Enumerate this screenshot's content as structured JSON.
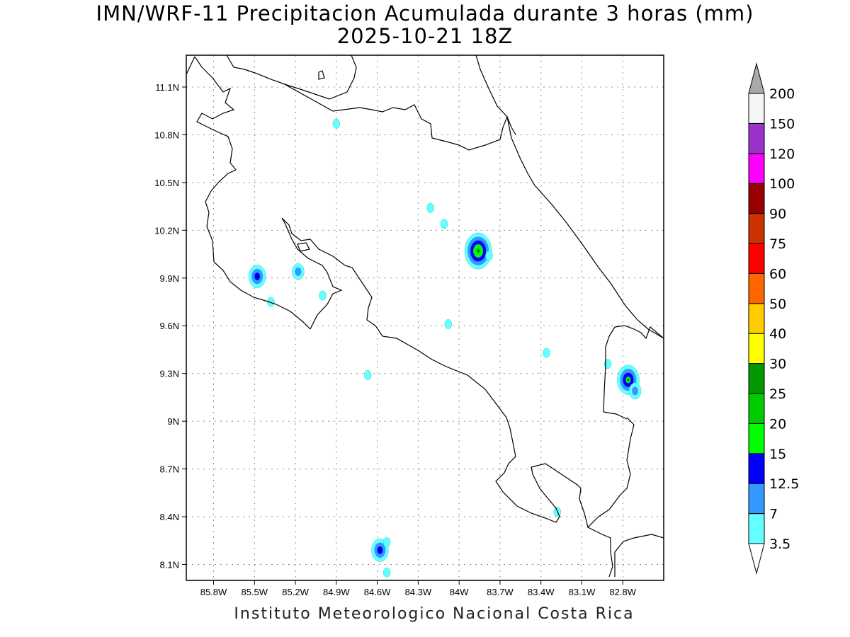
{
  "title": "IMN/WRF-11 Precipitacion Acumulada durante 3 horas (mm)",
  "subtitle": "2025-10-21 18Z",
  "credit": "Instituto Meteorologico Nacional Costa Rica",
  "map": {
    "lon_range": [
      -86.0,
      -82.5
    ],
    "lat_range": [
      8.0,
      11.3
    ],
    "lon_ticks": [
      {
        "value": -85.8,
        "label": "85.8W"
      },
      {
        "value": -85.5,
        "label": "85.5W"
      },
      {
        "value": -85.2,
        "label": "85.2W"
      },
      {
        "value": -84.9,
        "label": "84.9W"
      },
      {
        "value": -84.6,
        "label": "84.6W"
      },
      {
        "value": -84.3,
        "label": "84.3W"
      },
      {
        "value": -84.0,
        "label": "84W"
      },
      {
        "value": -83.7,
        "label": "83.7W"
      },
      {
        "value": -83.4,
        "label": "83.4W"
      },
      {
        "value": -83.1,
        "label": "83.1W"
      },
      {
        "value": -82.8,
        "label": "82.8W"
      }
    ],
    "lat_ticks": [
      {
        "value": 8.1,
        "label": "8.1N"
      },
      {
        "value": 8.4,
        "label": "8.4N"
      },
      {
        "value": 8.7,
        "label": "8.7N"
      },
      {
        "value": 9.0,
        "label": "9N"
      },
      {
        "value": 9.3,
        "label": "9.3N"
      },
      {
        "value": 9.6,
        "label": "9.6N"
      },
      {
        "value": 9.9,
        "label": "9.9N"
      },
      {
        "value": 10.2,
        "label": "10.2N"
      },
      {
        "value": 10.5,
        "label": "10.5N"
      },
      {
        "value": 10.8,
        "label": "10.8N"
      },
      {
        "value": 11.1,
        "label": "11.1N"
      }
    ],
    "gridlines": true
  },
  "colorbar": {
    "levels": [
      "3.5",
      "7",
      "12.5",
      "15",
      "20",
      "25",
      "30",
      "40",
      "50",
      "60",
      "75",
      "90",
      "100",
      "120",
      "150",
      "200"
    ],
    "colors": [
      "#66ffff",
      "#3399ff",
      "#0000ff",
      "#00ff00",
      "#00cc00",
      "#009900",
      "#ffff00",
      "#ffcc00",
      "#ff6600",
      "#ff0000",
      "#cc3300",
      "#990000",
      "#ff00ff",
      "#9933cc",
      "#f5f5f5"
    ],
    "over_color": "#a9a9a9",
    "under_color": "#ffffff"
  },
  "precip_cells": [
    {
      "lon": -85.48,
      "lat": 9.91,
      "max_level": "12.5"
    },
    {
      "lon": -85.38,
      "lat": 9.75,
      "max_level": "3.5"
    },
    {
      "lon": -83.86,
      "lat": 10.07,
      "max_level": "20"
    },
    {
      "lon": -82.76,
      "lat": 9.26,
      "max_level": "15"
    },
    {
      "lon": -84.58,
      "lat": 8.19,
      "max_level": "12.5"
    },
    {
      "lon": -84.53,
      "lat": 8.24,
      "max_level": "3.5"
    },
    {
      "lon": -84.53,
      "lat": 8.05,
      "max_level": "3.5"
    },
    {
      "lon": -84.21,
      "lat": 10.34,
      "max_level": "3.5"
    },
    {
      "lon": -84.11,
      "lat": 10.24,
      "max_level": "3.5"
    },
    {
      "lon": -84.9,
      "lat": 10.87,
      "max_level": "3.5"
    },
    {
      "lon": -85.18,
      "lat": 9.94,
      "max_level": "7"
    },
    {
      "lon": -85.0,
      "lat": 9.79,
      "max_level": "3.5"
    },
    {
      "lon": -84.67,
      "lat": 9.29,
      "max_level": "3.5"
    },
    {
      "lon": -84.08,
      "lat": 9.61,
      "max_level": "3.5"
    },
    {
      "lon": -82.91,
      "lat": 9.36,
      "max_level": "3.5"
    },
    {
      "lon": -82.71,
      "lat": 9.19,
      "max_level": "7"
    },
    {
      "lon": -83.28,
      "lat": 8.43,
      "max_level": "3.5"
    },
    {
      "lon": -83.78,
      "lat": 10.04,
      "max_level": "3.5"
    },
    {
      "lon": -83.36,
      "lat": 9.43,
      "max_level": "3.5"
    }
  ]
}
